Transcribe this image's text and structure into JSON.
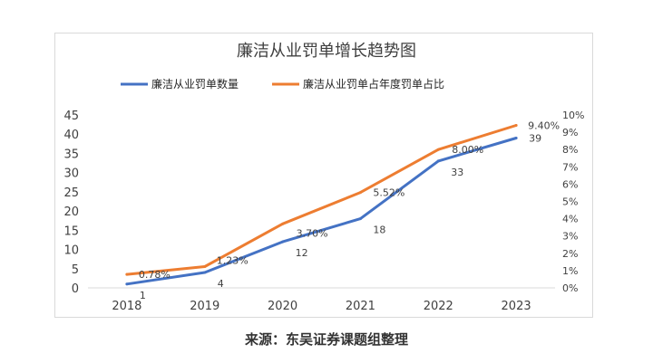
{
  "chart_data": {
    "type": "line",
    "title": "廉洁从业罚单增长趋势图",
    "x": [
      "2018",
      "2019",
      "2020",
      "2021",
      "2022",
      "2023"
    ],
    "series": [
      {
        "name": "廉洁从业罚单数量",
        "axis": "left",
        "color": "#4472c4",
        "values": [
          1,
          4,
          12,
          18,
          33,
          39
        ],
        "labels": [
          "1",
          "4",
          "12",
          "18",
          "33",
          "39"
        ]
      },
      {
        "name": "廉洁从业罚单占年度罚单占比",
        "axis": "right",
        "color": "#ed7d31",
        "values": [
          0.78,
          1.23,
          3.7,
          5.52,
          8.0,
          9.4
        ],
        "labels": [
          "0.78%",
          "1.23%",
          "3.70%",
          "5.52%",
          "8.00%",
          "9.40%"
        ]
      }
    ],
    "y_left": {
      "ylim": [
        0,
        45
      ],
      "ticks": [
        0,
        5,
        10,
        15,
        20,
        25,
        30,
        35,
        40,
        45
      ],
      "tick_labels": [
        "0",
        "5",
        "10",
        "15",
        "20",
        "25",
        "30",
        "35",
        "40",
        "45"
      ]
    },
    "y_right": {
      "ylim": [
        0,
        10
      ],
      "ticks": [
        0,
        1,
        2,
        3,
        4,
        5,
        6,
        7,
        8,
        9,
        10
      ],
      "tick_labels": [
        "0%",
        "1%",
        "2%",
        "3%",
        "4%",
        "5%",
        "6%",
        "7%",
        "8%",
        "9%",
        "10%"
      ]
    },
    "legend_position": "top",
    "grid": false
  },
  "source_note": "来源：东吴证券课题组整理"
}
